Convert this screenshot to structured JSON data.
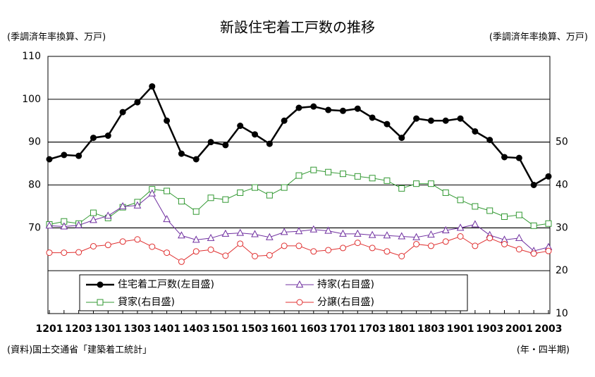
{
  "chart_data": {
    "type": "line",
    "title": "新設住宅着工戸数の推移",
    "y_label": "(季調済年率換算、万戸)",
    "y2_label": "(季調済年率換算、万戸)",
    "x_label": "(年・四半期)",
    "source": "(資料)国土交通省「建築着工統計」",
    "categories": [
      "1201",
      null,
      "1203",
      null,
      "1301",
      null,
      "1303",
      null,
      "1401",
      null,
      "1403",
      null,
      "1501",
      null,
      "1503",
      null,
      "1601",
      null,
      "1603",
      null,
      "1701",
      null,
      "1703",
      null,
      "1801",
      null,
      "1803",
      null,
      "1901",
      null,
      "1903",
      null,
      "2001",
      null,
      "2003"
    ],
    "ylim": [
      50,
      110
    ],
    "yticks": [
      70,
      80,
      90,
      100,
      110
    ],
    "y2lim": [
      10,
      70
    ],
    "y2ticks": [
      10,
      20,
      30,
      40,
      50
    ],
    "grid": true,
    "series": [
      {
        "name": "住宅着工戸数(左目盛)",
        "color": "#000000",
        "marker": "dot",
        "values": [
          86,
          87,
          86.8,
          91,
          91.5,
          97,
          99.3,
          103,
          95,
          87.3,
          86,
          90,
          89.3,
          93.8,
          91.8,
          89.6,
          95,
          98,
          98.3,
          97.5,
          97.3,
          97.8,
          95.7,
          94.2,
          91,
          95.5,
          95,
          95,
          95.5,
          92.5,
          90.5,
          86.5,
          86.3,
          80,
          82
        ]
      },
      {
        "name": "持家(右目盛)",
        "color": "#7030a0",
        "marker": "triangle",
        "axis": "y2",
        "values": [
          30.5,
          30.3,
          30.6,
          31.8,
          32.8,
          35,
          35.2,
          38,
          32,
          28.2,
          27.2,
          27.6,
          28.6,
          28.8,
          28.5,
          27.8,
          29,
          29.2,
          29.6,
          29.3,
          28.6,
          28.6,
          28.3,
          28.2,
          28,
          27.8,
          28.4,
          29.4,
          30,
          30.8,
          28.3,
          27.2,
          27.6,
          24.6,
          25.5
        ]
      },
      {
        "name": "貸家(右目盛)",
        "color": "#339933",
        "marker": "square",
        "axis": "y2",
        "values": [
          30.8,
          31.5,
          31,
          33.5,
          32.3,
          34.8,
          36,
          39,
          38.6,
          36.2,
          33.8,
          37,
          36.6,
          38.2,
          39.4,
          37.6,
          39.4,
          42.2,
          43.5,
          43,
          42.6,
          42,
          41.6,
          41,
          39.2,
          40.3,
          40.3,
          38.2,
          36.5,
          35,
          34,
          32.6,
          33,
          30.5,
          31
        ]
      },
      {
        "name": "分譲(右目盛)",
        "color": "#e03030",
        "marker": "circle",
        "axis": "y2",
        "values": [
          24.2,
          24.2,
          24.3,
          25.7,
          26,
          26.8,
          27.3,
          25.6,
          24.2,
          22.1,
          24.5,
          24.9,
          23.5,
          26.3,
          23.4,
          23.6,
          25.8,
          25.8,
          24.5,
          24.8,
          25.3,
          26.5,
          25.3,
          24.5,
          23.4,
          26.2,
          25.8,
          26.8,
          28,
          25.8,
          27.6,
          26.2,
          25,
          24,
          24.6
        ]
      }
    ]
  }
}
